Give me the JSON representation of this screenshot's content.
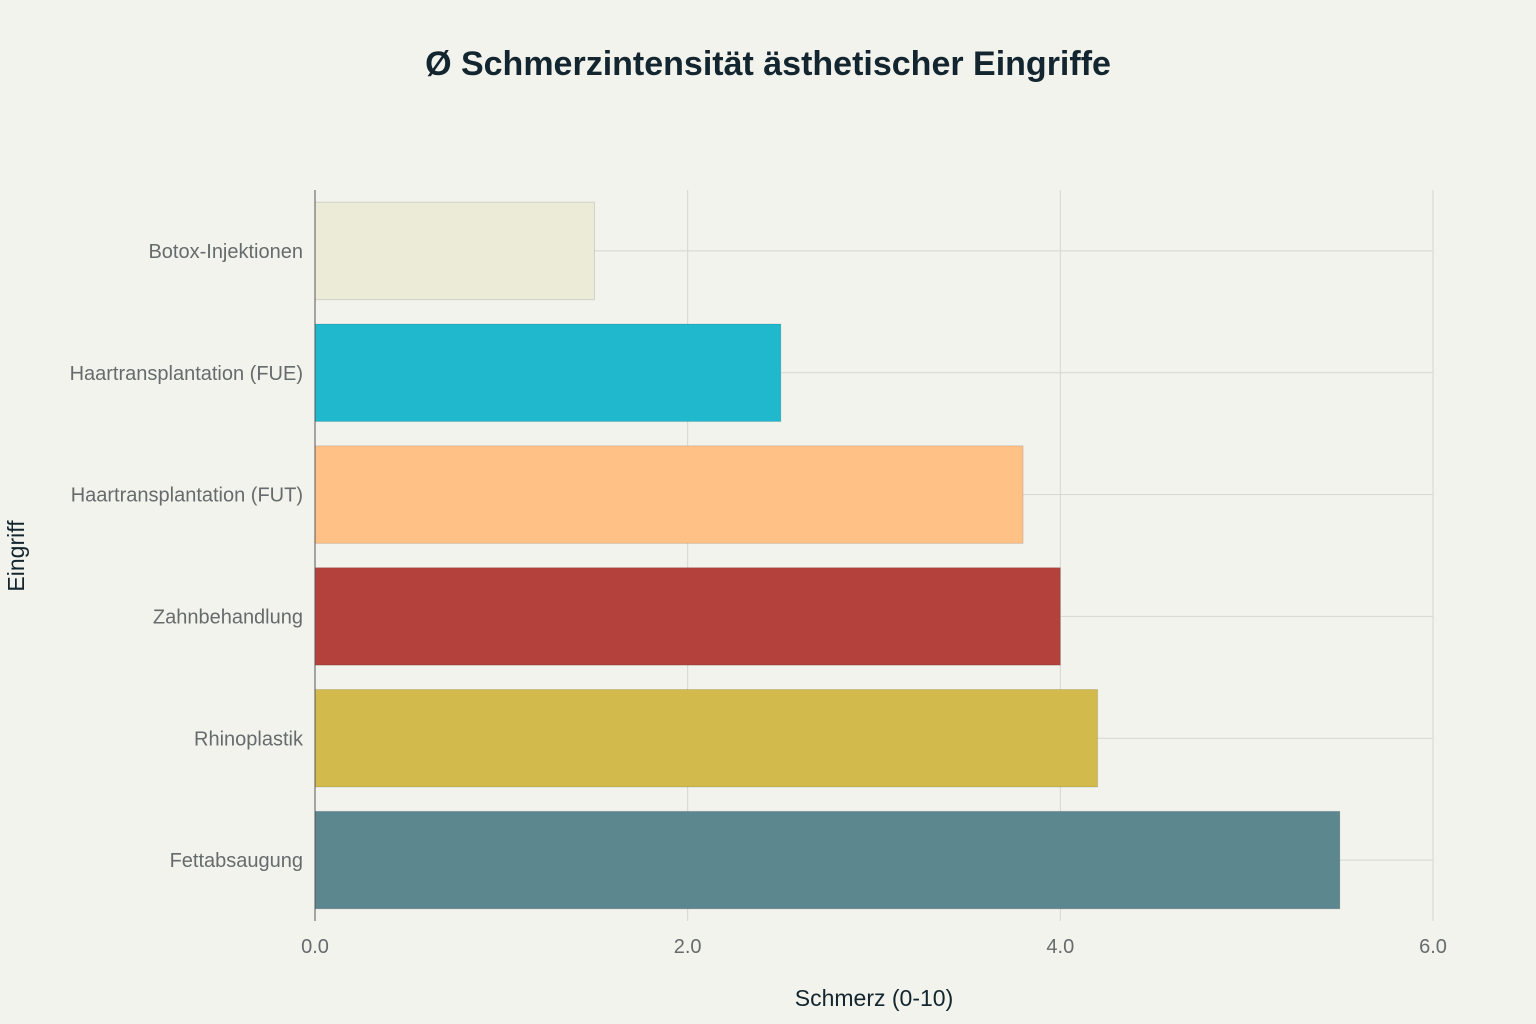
{
  "chart_data": {
    "type": "bar",
    "orientation": "horizontal",
    "title": "Ø Schmerzintensität ästhetischer Eingriffe",
    "xlabel": "Schmerz (0-10)",
    "ylabel": "Eingriff",
    "xlim": [
      0,
      6
    ],
    "x_ticks": [
      "0.0",
      "2.0",
      "4.0",
      "6.0"
    ],
    "grid": true,
    "legend": "none",
    "categories": [
      "Botox-Injektionen",
      "Haartransplantation (FUE)",
      "Haartransplantation (FUT)",
      "Zahnbehandlung",
      "Rhinoplastik",
      "Fettabsaugung"
    ],
    "values": [
      1.5,
      2.5,
      3.8,
      4.0,
      4.2,
      5.5
    ],
    "colors": [
      "#ecebd7",
      "#20b8cd",
      "#ffc185",
      "#b4413c",
      "#d2ba4c",
      "#5d878f"
    ]
  }
}
